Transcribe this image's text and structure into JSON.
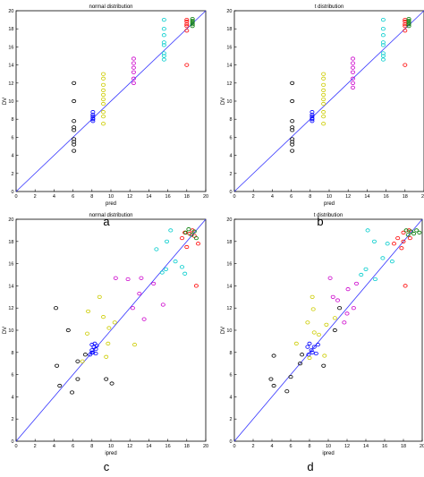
{
  "chart_data": [
    {
      "panel_label": "a",
      "type": "scatter",
      "title": "normal distribution",
      "xlabel": "pred",
      "ylabel": "DV",
      "xlim": [
        0,
        20
      ],
      "ylim": [
        0,
        20
      ],
      "xticks": [
        0,
        2,
        4,
        6,
        8,
        10,
        12,
        14,
        16,
        18,
        20
      ],
      "yticks": [
        0,
        2,
        4,
        6,
        8,
        10,
        12,
        14,
        16,
        18,
        20
      ],
      "reference_line": {
        "x": [
          0,
          20
        ],
        "y": [
          0,
          20
        ],
        "color": "#3333ff"
      },
      "series": [
        {
          "color": "#000000",
          "points": [
            [
              6.1,
              4.5
            ],
            [
              6.1,
              5.2
            ],
            [
              6.1,
              5.5
            ],
            [
              6.1,
              5.8
            ],
            [
              6.1,
              6.8
            ],
            [
              6.1,
              7.1
            ],
            [
              6.1,
              7.8
            ],
            [
              6.1,
              10.0
            ],
            [
              6.1,
              12.0
            ]
          ]
        },
        {
          "color": "#0000ff",
          "points": [
            [
              8.1,
              7.8
            ],
            [
              8.1,
              8.0
            ],
            [
              8.1,
              8.1
            ],
            [
              8.1,
              8.3
            ],
            [
              8.1,
              8.5
            ],
            [
              8.1,
              8.8
            ]
          ]
        },
        {
          "color": "#cccc00",
          "points": [
            [
              9.2,
              7.5
            ],
            [
              9.2,
              8.3
            ],
            [
              9.2,
              8.8
            ],
            [
              9.2,
              9.7
            ],
            [
              9.2,
              10.2
            ],
            [
              9.2,
              10.7
            ],
            [
              9.2,
              11.2
            ],
            [
              9.2,
              11.8
            ],
            [
              9.2,
              12.5
            ],
            [
              9.2,
              13.0
            ]
          ]
        },
        {
          "color": "#cc00cc",
          "points": [
            [
              12.4,
              12.0
            ],
            [
              12.4,
              12.5
            ],
            [
              12.4,
              13.2
            ],
            [
              12.4,
              13.7
            ],
            [
              12.4,
              14.2
            ],
            [
              12.4,
              14.7
            ]
          ]
        },
        {
          "color": "#00cccc",
          "points": [
            [
              15.6,
              14.6
            ],
            [
              15.6,
              15.0
            ],
            [
              15.6,
              15.3
            ],
            [
              15.6,
              16.2
            ],
            [
              15.6,
              16.5
            ],
            [
              15.6,
              17.3
            ],
            [
              15.6,
              18.0
            ],
            [
              15.6,
              19.0
            ]
          ]
        },
        {
          "color": "#ff0000",
          "points": [
            [
              18.0,
              14.0
            ],
            [
              18.0,
              17.8
            ],
            [
              18.0,
              18.3
            ],
            [
              18.0,
              18.5
            ],
            [
              18.0,
              18.8
            ],
            [
              18.0,
              19.0
            ]
          ]
        },
        {
          "color": "#007a00",
          "points": [
            [
              18.6,
              18.3
            ],
            [
              18.6,
              18.5
            ],
            [
              18.6,
              18.7
            ],
            [
              18.6,
              18.9
            ],
            [
              18.6,
              19.1
            ]
          ]
        }
      ]
    },
    {
      "panel_label": "b",
      "type": "scatter",
      "title": "t distribution",
      "xlabel": "pred",
      "ylabel": "DV",
      "xlim": [
        0,
        20
      ],
      "ylim": [
        0,
        20
      ],
      "xticks": [
        0,
        2,
        4,
        6,
        8,
        10,
        12,
        14,
        16,
        18,
        20
      ],
      "yticks": [
        0,
        2,
        4,
        6,
        8,
        10,
        12,
        14,
        16,
        18,
        20
      ],
      "reference_line": {
        "x": [
          0,
          20
        ],
        "y": [
          0,
          20
        ],
        "color": "#3333ff"
      },
      "series": [
        {
          "color": "#000000",
          "points": [
            [
              6.1,
              4.5
            ],
            [
              6.1,
              5.2
            ],
            [
              6.1,
              5.5
            ],
            [
              6.1,
              5.8
            ],
            [
              6.1,
              6.8
            ],
            [
              6.1,
              7.1
            ],
            [
              6.1,
              7.8
            ],
            [
              6.1,
              10.0
            ],
            [
              6.1,
              12.0
            ]
          ]
        },
        {
          "color": "#0000ff",
          "points": [
            [
              8.2,
              7.8
            ],
            [
              8.2,
              8.0
            ],
            [
              8.2,
              8.1
            ],
            [
              8.2,
              8.3
            ],
            [
              8.2,
              8.5
            ],
            [
              8.2,
              8.8
            ]
          ]
        },
        {
          "color": "#cccc00",
          "points": [
            [
              9.4,
              7.5
            ],
            [
              9.4,
              8.3
            ],
            [
              9.4,
              8.8
            ],
            [
              9.4,
              9.7
            ],
            [
              9.4,
              10.2
            ],
            [
              9.4,
              10.7
            ],
            [
              9.4,
              11.2
            ],
            [
              9.4,
              11.8
            ],
            [
              9.4,
              12.5
            ],
            [
              9.4,
              13.0
            ]
          ]
        },
        {
          "color": "#cc00cc",
          "points": [
            [
              12.5,
              11.5
            ],
            [
              12.5,
              12.0
            ],
            [
              12.5,
              12.5
            ],
            [
              12.5,
              13.2
            ],
            [
              12.5,
              13.7
            ],
            [
              12.5,
              14.2
            ],
            [
              12.5,
              14.7
            ]
          ]
        },
        {
          "color": "#00cccc",
          "points": [
            [
              15.7,
              14.6
            ],
            [
              15.7,
              15.0
            ],
            [
              15.7,
              15.3
            ],
            [
              15.7,
              16.2
            ],
            [
              15.7,
              16.5
            ],
            [
              15.7,
              17.3
            ],
            [
              15.7,
              18.0
            ],
            [
              15.7,
              19.0
            ]
          ]
        },
        {
          "color": "#ff0000",
          "points": [
            [
              18.0,
              14.0
            ],
            [
              18.0,
              17.8
            ],
            [
              18.0,
              18.3
            ],
            [
              18.0,
              18.5
            ],
            [
              18.0,
              18.8
            ],
            [
              18.0,
              19.0
            ]
          ]
        },
        {
          "color": "#007a00",
          "points": [
            [
              18.4,
              18.3
            ],
            [
              18.4,
              18.5
            ],
            [
              18.4,
              18.7
            ],
            [
              18.4,
              18.9
            ],
            [
              18.4,
              19.1
            ]
          ]
        }
      ]
    },
    {
      "panel_label": "c",
      "type": "scatter",
      "title": "normal distribution",
      "xlabel": "ipred",
      "ylabel": "DV",
      "xlim": [
        0,
        20
      ],
      "ylim": [
        0,
        20
      ],
      "xticks": [
        0,
        2,
        4,
        6,
        8,
        10,
        12,
        14,
        16,
        18,
        20
      ],
      "yticks": [
        0,
        2,
        4,
        6,
        8,
        10,
        12,
        14,
        16,
        18,
        20
      ],
      "reference_line": {
        "x": [
          0,
          20
        ],
        "y": [
          0,
          20
        ],
        "color": "#3333ff"
      },
      "series": [
        {
          "color": "#000000",
          "points": [
            [
              4.2,
              12.0
            ],
            [
              4.3,
              6.8
            ],
            [
              5.5,
              10.0
            ],
            [
              4.6,
              5.0
            ],
            [
              5.9,
              4.4
            ],
            [
              6.5,
              5.6
            ],
            [
              6.5,
              7.2
            ],
            [
              7.3,
              7.8
            ],
            [
              9.5,
              5.6
            ],
            [
              10.1,
              5.2
            ]
          ]
        },
        {
          "color": "#0000ff",
          "points": [
            [
              7.8,
              7.8
            ],
            [
              8.0,
              8.2
            ],
            [
              8.0,
              8.7
            ],
            [
              8.1,
              8.0
            ],
            [
              8.2,
              8.5
            ],
            [
              8.3,
              8.8
            ],
            [
              8.4,
              7.9
            ],
            [
              8.4,
              8.3
            ],
            [
              8.5,
              8.6
            ],
            [
              8.0,
              8.0
            ]
          ]
        },
        {
          "color": "#cccc00",
          "points": [
            [
              7.5,
              9.7
            ],
            [
              7.6,
              11.7
            ],
            [
              8.8,
              13.0
            ],
            [
              9.2,
              11.2
            ],
            [
              9.8,
              10.2
            ],
            [
              10.4,
              10.7
            ],
            [
              9.7,
              8.8
            ],
            [
              12.5,
              8.7
            ],
            [
              9.5,
              7.6
            ],
            [
              7.0,
              7.2
            ]
          ]
        },
        {
          "color": "#cc00cc",
          "points": [
            [
              10.5,
              14.7
            ],
            [
              11.8,
              14.6
            ],
            [
              12.3,
              12.0
            ],
            [
              13.0,
              13.3
            ],
            [
              13.2,
              14.7
            ],
            [
              13.5,
              11.0
            ],
            [
              14.5,
              14.2
            ],
            [
              15.5,
              12.3
            ]
          ]
        },
        {
          "color": "#00cccc",
          "points": [
            [
              14.8,
              17.3
            ],
            [
              15.4,
              15.2
            ],
            [
              15.8,
              15.5
            ],
            [
              15.9,
              18.0
            ],
            [
              16.3,
              19.0
            ],
            [
              16.8,
              16.2
            ],
            [
              17.5,
              15.7
            ],
            [
              17.8,
              15.1
            ]
          ]
        },
        {
          "color": "#ff0000",
          "points": [
            [
              17.5,
              18.3
            ],
            [
              18.0,
              17.5
            ],
            [
              18.3,
              18.7
            ],
            [
              18.6,
              19.0
            ],
            [
              19.0,
              14.0
            ],
            [
              19.2,
              17.8
            ],
            [
              17.8,
              18.8
            ],
            [
              18.8,
              18.5
            ]
          ]
        },
        {
          "color": "#007a00",
          "points": [
            [
              17.9,
              18.8
            ],
            [
              18.2,
              19.1
            ],
            [
              18.5,
              18.6
            ],
            [
              18.8,
              18.9
            ],
            [
              19.0,
              18.3
            ]
          ]
        }
      ]
    },
    {
      "panel_label": "d",
      "type": "scatter",
      "title": "t distribution",
      "xlabel": "ipred",
      "ylabel": "DV",
      "xlim": [
        0,
        20
      ],
      "ylim": [
        0,
        20
      ],
      "xticks": [
        0,
        2,
        4,
        6,
        8,
        10,
        12,
        14,
        16,
        18,
        20
      ],
      "yticks": [
        0,
        2,
        4,
        6,
        8,
        10,
        12,
        14,
        16,
        18,
        20
      ],
      "reference_line": {
        "x": [
          0,
          20
        ],
        "y": [
          0,
          20
        ],
        "color": "#3333ff"
      },
      "series": [
        {
          "color": "#000000",
          "points": [
            [
              3.9,
              5.6
            ],
            [
              4.2,
              5.0
            ],
            [
              4.2,
              7.7
            ],
            [
              5.6,
              4.5
            ],
            [
              6.0,
              5.8
            ],
            [
              7.0,
              7.0
            ],
            [
              7.2,
              7.8
            ],
            [
              9.5,
              6.8
            ],
            [
              10.7,
              10.0
            ],
            [
              11.2,
              12.0
            ]
          ]
        },
        {
          "color": "#0000ff",
          "points": [
            [
              7.8,
              8.5
            ],
            [
              7.9,
              7.8
            ],
            [
              8.0,
              8.8
            ],
            [
              8.2,
              8.2
            ],
            [
              8.3,
              8.0
            ],
            [
              8.5,
              8.5
            ],
            [
              8.7,
              7.9
            ],
            [
              8.9,
              8.7
            ]
          ]
        },
        {
          "color": "#cccc00",
          "points": [
            [
              6.6,
              8.8
            ],
            [
              7.8,
              10.7
            ],
            [
              8.0,
              7.5
            ],
            [
              8.4,
              11.9
            ],
            [
              9.0,
              9.6
            ],
            [
              9.8,
              10.5
            ],
            [
              10.7,
              11.1
            ],
            [
              8.3,
              13.0
            ],
            [
              8.5,
              9.8
            ],
            [
              9.6,
              7.7
            ]
          ]
        },
        {
          "color": "#cc00cc",
          "points": [
            [
              10.2,
              14.7
            ],
            [
              10.5,
              13.0
            ],
            [
              11.0,
              12.7
            ],
            [
              12.1,
              13.7
            ],
            [
              12.0,
              11.5
            ],
            [
              12.7,
              12.0
            ],
            [
              13.0,
              14.2
            ],
            [
              11.7,
              10.7
            ]
          ]
        },
        {
          "color": "#00cccc",
          "points": [
            [
              13.5,
              15.0
            ],
            [
              14.0,
              15.5
            ],
            [
              14.2,
              19.0
            ],
            [
              15.0,
              14.6
            ],
            [
              15.8,
              16.5
            ],
            [
              16.3,
              17.8
            ],
            [
              16.8,
              16.2
            ],
            [
              14.9,
              18.0
            ]
          ]
        },
        {
          "color": "#ff0000",
          "points": [
            [
              17.0,
              17.8
            ],
            [
              17.4,
              18.3
            ],
            [
              17.8,
              17.4
            ],
            [
              18.0,
              18.8
            ],
            [
              18.2,
              14.0
            ],
            [
              18.6,
              19.0
            ],
            [
              18.0,
              18.0
            ],
            [
              18.7,
              18.3
            ]
          ]
        },
        {
          "color": "#007a00",
          "points": [
            [
              18.5,
              18.6
            ],
            [
              18.8,
              18.9
            ],
            [
              19.1,
              18.7
            ],
            [
              19.4,
              19.0
            ],
            [
              19.7,
              18.8
            ],
            [
              18.3,
              19.0
            ]
          ]
        }
      ]
    }
  ]
}
